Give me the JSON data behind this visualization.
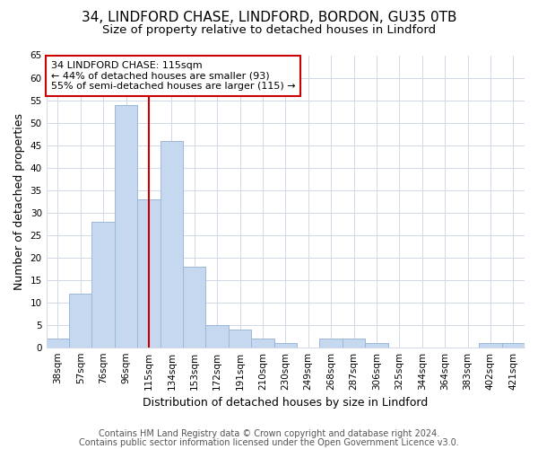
{
  "title1": "34, LINDFORD CHASE, LINDFORD, BORDON, GU35 0TB",
  "title2": "Size of property relative to detached houses in Lindford",
  "xlabel": "Distribution of detached houses by size in Lindford",
  "ylabel": "Number of detached properties",
  "categories": [
    "38sqm",
    "57sqm",
    "76sqm",
    "96sqm",
    "115sqm",
    "134sqm",
    "153sqm",
    "172sqm",
    "191sqm",
    "210sqm",
    "230sqm",
    "249sqm",
    "268sqm",
    "287sqm",
    "306sqm",
    "325sqm",
    "344sqm",
    "364sqm",
    "383sqm",
    "402sqm",
    "421sqm"
  ],
  "values": [
    2,
    12,
    28,
    54,
    33,
    46,
    18,
    5,
    4,
    2,
    1,
    0,
    2,
    2,
    1,
    0,
    0,
    0,
    0,
    1,
    1
  ],
  "bar_color": "#c5d8f0",
  "bar_edge_color": "#9ab8d8",
  "vline_x_index": 4,
  "vline_color": "#cc0000",
  "annotation_line1": "34 LINDFORD CHASE: 115sqm",
  "annotation_line2": "← 44% of detached houses are smaller (93)",
  "annotation_line3": "55% of semi-detached houses are larger (115) →",
  "annotation_box_color": "#ffffff",
  "annotation_box_edge": "#cc0000",
  "ylim": [
    0,
    65
  ],
  "yticks": [
    0,
    5,
    10,
    15,
    20,
    25,
    30,
    35,
    40,
    45,
    50,
    55,
    60,
    65
  ],
  "footer1": "Contains HM Land Registry data © Crown copyright and database right 2024.",
  "footer2": "Contains public sector information licensed under the Open Government Licence v3.0.",
  "bg_color": "#ffffff",
  "plot_bg_color": "#ffffff",
  "grid_color": "#d0d8e8",
  "title1_fontsize": 11,
  "title2_fontsize": 9.5,
  "tick_fontsize": 7.5,
  "label_fontsize": 9,
  "ann_fontsize": 8,
  "footer_fontsize": 7
}
